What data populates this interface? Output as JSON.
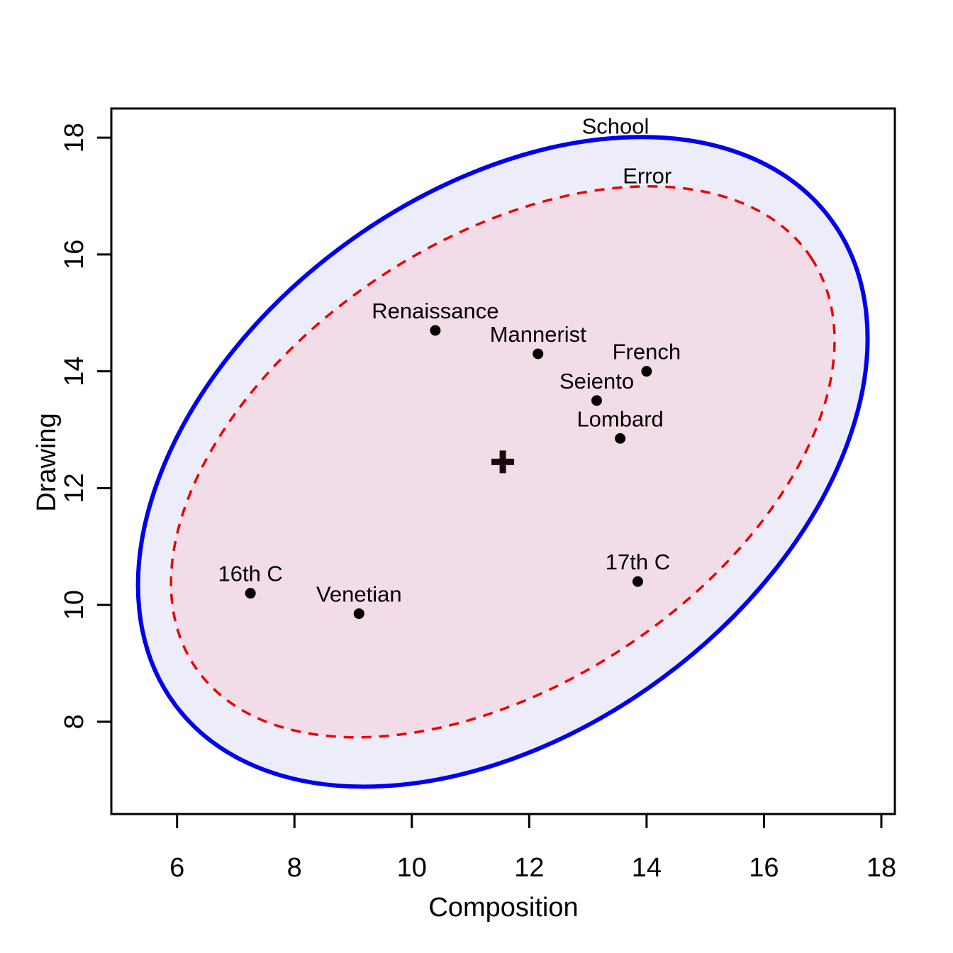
{
  "chart_data": {
    "type": "scatter",
    "title": "",
    "xlabel": "Composition",
    "ylabel": "Drawing",
    "xlim": [
      4.88,
      18.23
    ],
    "ylim": [
      6.42,
      18.5
    ],
    "x_ticks": [
      6,
      8,
      10,
      12,
      14,
      16,
      18
    ],
    "y_ticks": [
      8,
      10,
      12,
      14,
      16,
      18
    ],
    "grid": false,
    "legend_position": "none",
    "points": [
      {
        "label": "Renaissance",
        "x": 10.4,
        "y": 14.7
      },
      {
        "label": "Mannerist",
        "x": 12.15,
        "y": 14.3
      },
      {
        "label": "French",
        "x": 14.0,
        "y": 14.0
      },
      {
        "label": "Seiento",
        "x": 13.15,
        "y": 13.5
      },
      {
        "label": "Lombard",
        "x": 13.55,
        "y": 12.85
      },
      {
        "label": "16th C",
        "x": 7.25,
        "y": 10.2
      },
      {
        "label": "Venetian",
        "x": 9.1,
        "y": 9.85
      },
      {
        "label": "17th C",
        "x": 13.85,
        "y": 10.4
      }
    ],
    "centroid": {
      "x": 11.55,
      "y": 12.45,
      "marker": "+"
    },
    "ellipses": [
      {
        "label": "School",
        "cx": 11.55,
        "cy": 12.45,
        "semi_major": 6.95,
        "semi_minor": 4.6,
        "angle_deg": 36.5,
        "stroke": "#0000EE",
        "fill": "#ECEDF9",
        "line_style": "solid",
        "stroke_width": 6,
        "label_pos": {
          "x": 13.47,
          "y": 18.07
        }
      },
      {
        "label": "Error",
        "cx": 11.55,
        "cy": 12.45,
        "semi_major": 6.3,
        "semi_minor": 3.8,
        "angle_deg": 33.5,
        "stroke": "#EE0000",
        "fill": "#F2DCE8",
        "line_style": "dashed",
        "stroke_width": 3.5,
        "label_pos": {
          "x": 14.01,
          "y": 17.22
        }
      }
    ],
    "point_color": "#000000",
    "centroid_color": "#1C060F",
    "axis_color": "#000000"
  }
}
